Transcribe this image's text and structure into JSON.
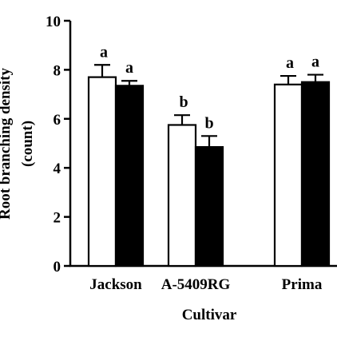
{
  "chart_data": {
    "type": "bar",
    "title": "",
    "xlabel": "Cultivar",
    "ylabel": "Root branching density",
    "ylabel_unit": "(count)",
    "ylim": [
      0,
      10
    ],
    "yticks": [
      0,
      2,
      4,
      6,
      8,
      10
    ],
    "grid": false,
    "legend": "none",
    "categories": [
      "Jackson",
      "A-5409RG",
      "Prima"
    ],
    "series": [
      {
        "fill": "#ffffff",
        "values": [
          7.7,
          5.75,
          7.4
        ],
        "errors": [
          0.5,
          0.4,
          0.35
        ],
        "significance": [
          "a",
          "b",
          "a"
        ]
      },
      {
        "fill": "#000000",
        "values": [
          7.35,
          4.85,
          7.5
        ],
        "errors": [
          0.2,
          0.45,
          0.3
        ],
        "significance": [
          "a",
          "b",
          "a"
        ]
      }
    ]
  }
}
